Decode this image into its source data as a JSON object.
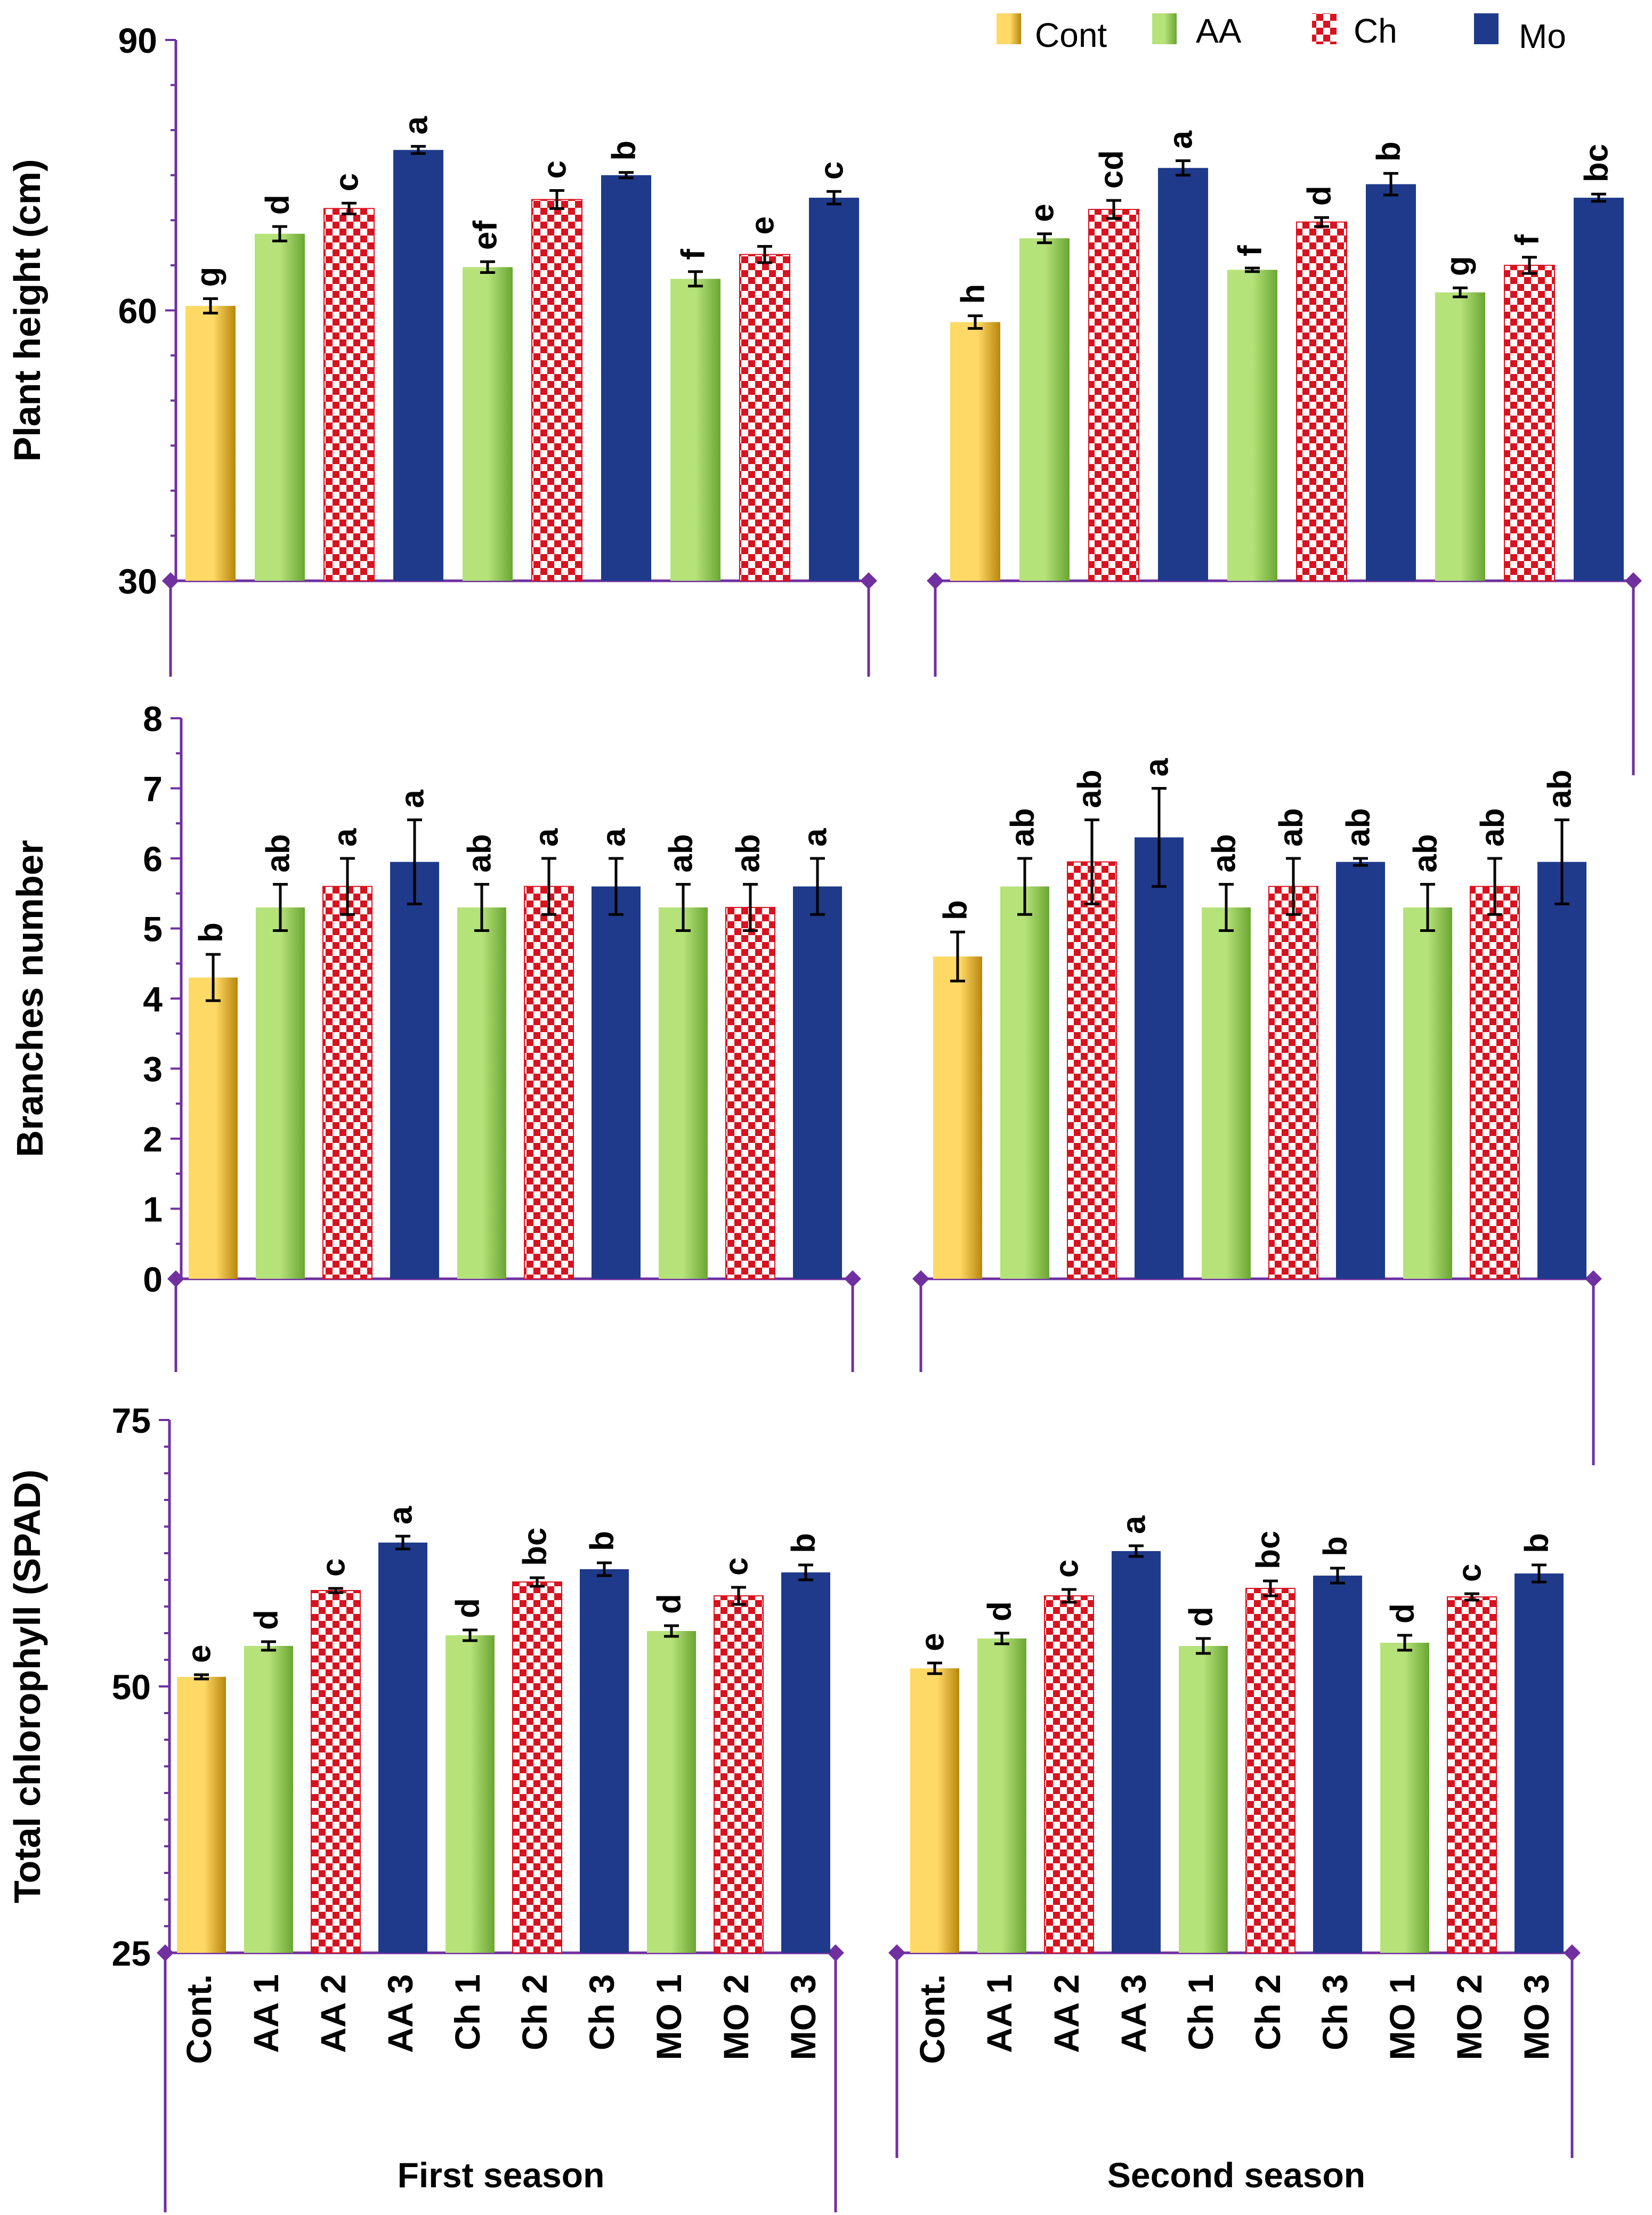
{
  "colors": {
    "axis": "#7030a0",
    "cont_light": "#ffd966",
    "cont_dark": "#b8860b",
    "aa_light": "#b6e27a",
    "aa_dark": "#6aa632",
    "ch_fill": "#ffffff",
    "ch_pattern": "#d9121f",
    "mo": "#1f3a8a",
    "text": "#000000"
  },
  "legend": [
    {
      "key": "cont",
      "label": "Cont"
    },
    {
      "key": "aa",
      "label": "AA"
    },
    {
      "key": "ch",
      "label": "Ch"
    },
    {
      "key": "mo",
      "label": "Mo"
    }
  ],
  "x_labels": {
    "categories": [
      "Cont.",
      "AA 1",
      "AA 2",
      "AA 3",
      "Ch 1",
      "Ch 2",
      "Ch 3",
      "MO 1",
      "MO 2",
      "MO 3"
    ],
    "groups": [
      "First season",
      "Second season"
    ]
  },
  "chart_data": [
    {
      "type": "bar",
      "id": "plant-height",
      "ylabel": "Plant height (cm)",
      "ylim": [
        30,
        90
      ],
      "yticks": [
        30,
        60,
        90
      ],
      "minor_step": 5,
      "categories": [
        "Cont.",
        "AA 1",
        "AA 2",
        "AA 3",
        "Ch 1",
        "Ch 2",
        "Ch 3",
        "MO 1",
        "MO 2",
        "MO 3"
      ],
      "bar_types": [
        "cont",
        "aa",
        "ch",
        "mo",
        "aa",
        "ch",
        "mo",
        "aa",
        "ch",
        "mo"
      ],
      "series": [
        {
          "name": "First season",
          "values": [
            60.5,
            68.5,
            71.3,
            77.8,
            64.8,
            72.3,
            75.0,
            63.5,
            66.2,
            72.5
          ],
          "errors": [
            0.8,
            0.8,
            0.6,
            0.4,
            0.6,
            1.0,
            0.3,
            0.8,
            0.9,
            0.7
          ],
          "letters": [
            "g",
            "d",
            "c",
            "a",
            "ef",
            "c",
            "b",
            "f",
            "e",
            "c"
          ]
        },
        {
          "name": "Second season",
          "values": [
            58.7,
            68.0,
            71.2,
            75.8,
            64.5,
            69.8,
            74.0,
            62.0,
            65.0,
            72.5
          ],
          "errors": [
            0.7,
            0.5,
            1.0,
            0.8,
            0.2,
            0.5,
            1.2,
            0.5,
            0.9,
            0.4
          ],
          "letters": [
            "h",
            "e",
            "cd",
            "a",
            "f",
            "d",
            "b",
            "g",
            "f",
            "bc"
          ]
        }
      ]
    },
    {
      "type": "bar",
      "id": "branches",
      "ylabel": "Branches number",
      "ylim": [
        0,
        8
      ],
      "yticks": [
        0,
        1,
        2,
        3,
        4,
        5,
        6,
        7,
        8
      ],
      "minor_step": 0.5,
      "categories": [
        "Cont.",
        "AA 1",
        "AA 2",
        "AA 3",
        "Ch 1",
        "Ch 2",
        "Ch 3",
        "MO 1",
        "MO 2",
        "MO 3"
      ],
      "bar_types": [
        "cont",
        "aa",
        "ch",
        "mo",
        "aa",
        "ch",
        "mo",
        "aa",
        "ch",
        "mo"
      ],
      "series": [
        {
          "name": "First season",
          "values": [
            4.3,
            5.3,
            5.6,
            5.95,
            5.3,
            5.6,
            5.6,
            5.3,
            5.3,
            5.6
          ],
          "errors": [
            0.33,
            0.33,
            0.4,
            0.6,
            0.33,
            0.4,
            0.4,
            0.33,
            0.33,
            0.4
          ],
          "letters": [
            "b",
            "ab",
            "a",
            "a",
            "ab",
            "a",
            "a",
            "ab",
            "ab",
            "a"
          ]
        },
        {
          "name": "Second season",
          "values": [
            4.6,
            5.6,
            5.95,
            6.3,
            5.3,
            5.6,
            5.95,
            5.3,
            5.6,
            5.95
          ],
          "errors": [
            0.35,
            0.4,
            0.6,
            0.7,
            0.33,
            0.4,
            0.05,
            0.33,
            0.4,
            0.6
          ],
          "letters": [
            "b",
            "ab",
            "ab",
            "a",
            "ab",
            "ab",
            "ab",
            "ab",
            "ab",
            "ab"
          ]
        }
      ]
    },
    {
      "type": "bar",
      "id": "chlorophyll",
      "ylabel": "Total chlorophyll (SPAD)",
      "ylim": [
        25,
        75
      ],
      "yticks": [
        25,
        50,
        75
      ],
      "minor_step": 2.5,
      "categories": [
        "Cont.",
        "AA 1",
        "AA 2",
        "AA 3",
        "Ch 1",
        "Ch 2",
        "Ch 3",
        "MO 1",
        "MO 2",
        "MO 3"
      ],
      "bar_types": [
        "cont",
        "aa",
        "ch",
        "mo",
        "aa",
        "ch",
        "mo",
        "aa",
        "ch",
        "mo"
      ],
      "series": [
        {
          "name": "First season",
          "values": [
            50.9,
            53.8,
            59.0,
            63.5,
            54.8,
            59.8,
            61.0,
            55.2,
            58.5,
            60.7
          ],
          "errors": [
            0.2,
            0.4,
            0.2,
            0.6,
            0.5,
            0.4,
            0.6,
            0.5,
            0.8,
            0.7
          ],
          "letters": [
            "e",
            "d",
            "c",
            "a",
            "d",
            "bc",
            "b",
            "d",
            "c",
            "b"
          ]
        },
        {
          "name": "Second season",
          "values": [
            51.7,
            54.5,
            58.5,
            62.7,
            53.8,
            59.2,
            60.4,
            54.1,
            58.4,
            60.6
          ],
          "errors": [
            0.5,
            0.5,
            0.6,
            0.5,
            0.7,
            0.7,
            0.7,
            0.7,
            0.3,
            0.8
          ],
          "letters": [
            "e",
            "d",
            "c",
            "a",
            "d",
            "bc",
            "b",
            "d",
            "c",
            "b"
          ]
        }
      ]
    }
  ]
}
